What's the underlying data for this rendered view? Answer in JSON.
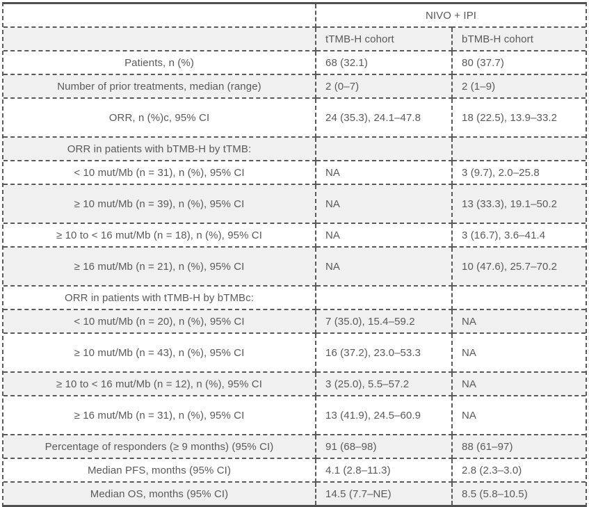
{
  "colors": {
    "text": "#595959",
    "border": "#595959",
    "frame": "#4f4f4f",
    "stripe": "#f0f0f0"
  },
  "table": {
    "group_header": "NIVO + IPI",
    "columns": [
      "tTMB-H cohort",
      "bTMB-H cohort"
    ],
    "rows": [
      {
        "label": "Patients, n (%)",
        "ttmb": "68 (32.1)",
        "btmb": "80 (37.7)",
        "tall": false
      },
      {
        "label": "Number of prior treatments, median (range)",
        "ttmb": "2 (0–7)",
        "btmb": "2 (1–9)",
        "tall": false
      },
      {
        "label": "ORR, n (%)c, 95% CI",
        "ttmb": "24 (35.3), 24.1–47.8",
        "btmb": "18 (22.5), 13.9–33.2",
        "tall": true
      },
      {
        "label": "ORR in patients with bTMB-H by tTMB:",
        "ttmb": "",
        "btmb": "",
        "tall": false
      },
      {
        "label": "< 10 mut/Mb (n = 31), n (%), 95% CI",
        "ttmb": "NA",
        "btmb": "3 (9.7), 2.0–25.8",
        "tall": false
      },
      {
        "label": "≥ 10 mut/Mb (n = 39), n (%), 95% CI",
        "ttmb": "NA",
        "btmb": "13 (33.3), 19.1–50.2",
        "tall": true
      },
      {
        "label": "≥ 10 to < 16 mut/Mb (n = 18), n (%), 95% CI",
        "ttmb": "NA",
        "btmb": "3 (16.7), 3.6–41.4",
        "tall": false
      },
      {
        "label": "≥ 16 mut/Mb (n = 21), n (%), 95% CI",
        "ttmb": "NA",
        "btmb": "10 (47.6), 25.7–70.2",
        "tall": true
      },
      {
        "label": "ORR in patients with tTMB-H by bTMBc:",
        "ttmb": "",
        "btmb": "",
        "tall": false
      },
      {
        "label": "< 10 mut/Mb (n = 20), n (%), 95% CI",
        "ttmb": "7 (35.0), 15.4–59.2",
        "btmb": "NA",
        "tall": false
      },
      {
        "label": "≥ 10 mut/Mb (n = 43), n (%), 95% CI",
        "ttmb": "16 (37.2), 23.0–53.3",
        "btmb": "NA",
        "tall": true
      },
      {
        "label": "≥ 10 to < 16 mut/Mb (n = 12), n (%), 95% CI",
        "ttmb": "3 (25.0), 5.5–57.2",
        "btmb": "NA",
        "tall": false
      },
      {
        "label": "≥ 16 mut/Mb (n = 31), n (%), 95% CI",
        "ttmb": "13 (41.9), 24.5–60.9",
        "btmb": "NA",
        "tall": true
      },
      {
        "label": "Percentage of responders (≥ 9 months) (95% CI)",
        "ttmb": "91 (68–98)",
        "btmb": "88 (61–97)",
        "tall": false
      },
      {
        "label": "Median PFS, months (95% CI)",
        "ttmb": "4.1 (2.8–11.3)",
        "btmb": "2.8 (2.3–3.0)",
        "tall": false
      },
      {
        "label": "Median OS, months (95% CI)",
        "ttmb": "14.5 (7.7–NE)",
        "btmb": "8.5 (5.8–10.5)",
        "tall": false
      }
    ]
  }
}
